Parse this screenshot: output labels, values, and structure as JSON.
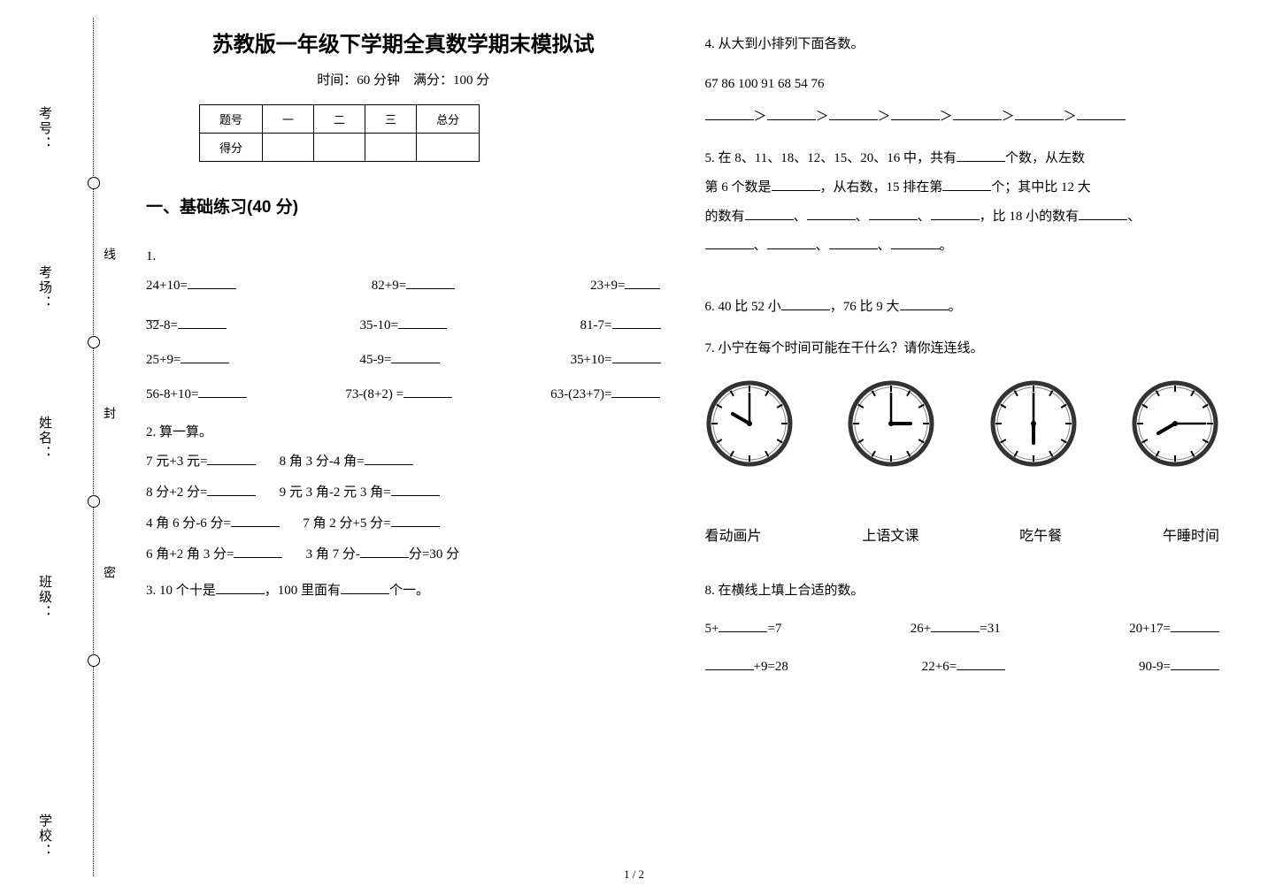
{
  "binding": {
    "labels": [
      "考号：",
      "考场：",
      "姓名：",
      "班级：",
      "学校："
    ],
    "seglabels": [
      "线",
      "封",
      "密"
    ]
  },
  "header": {
    "title": "苏教版一年级下学期全真数学期末模拟试",
    "subtitle": "时间：60 分钟　满分：100 分"
  },
  "score_table": {
    "row1": [
      "题号",
      "一",
      "二",
      "三",
      "总分"
    ],
    "row2_label": "得分"
  },
  "section1_title": "一、基础练习(40 分)",
  "q1": {
    "num": "1.",
    "a1": "24+10=",
    "a2": "82+9=",
    "a3": "23+9=",
    "b1": "32-8=",
    "b2": "35-10=",
    "b3": "81-7=",
    "c1": "25+9=",
    "c2": "45-9=",
    "c3": "35+10=",
    "d1": "56-8+10=",
    "d2": "73-(8+2) =",
    "d3": "63-(23+7)="
  },
  "q2": {
    "num": "2.  算一算。",
    "a1": "7 元+3 元=",
    "a2": "8 角 3 分-4 角=",
    "b1": "8 分+2 分=",
    "b2": "9 元 3 角-2 元 3 角=",
    "c1": "4 角 6 分-6 分=",
    "c2": "7 角 2 分+5 分=",
    "d1": "6 角+2 角 3 分=",
    "d2a": "3 角 7 分-",
    "d2b": "分=30 分"
  },
  "q3": {
    "a": "3.  10 个十是",
    "b": "，100 里面有",
    "c": "个一。"
  },
  "q4": {
    "title": "4.  从大到小排列下面各数。",
    "nums": "67  86  100  91  68  54  76",
    "gt": "＞"
  },
  "q5": {
    "a": "5.  在 8、11、18、12、15、20、16 中，共有",
    "b": "个数，从左数",
    "c": "第 6 个数是",
    "d": "，从右数，15 排在第",
    "e": "个；其中比 12 大",
    "f": "的数有",
    "g": "，比 18 小的数有",
    "sep": "、",
    "end": "。"
  },
  "q6": {
    "a": "6.  40 比 52 小",
    "b": "，76 比 9 大",
    "c": "。"
  },
  "q7": {
    "title": "7.  小宁在每个时间可能在干什么？请你连连线。",
    "activities": [
      "看动画片",
      "上语文课",
      "吃午餐",
      "午睡时间"
    ],
    "clocks": [
      {
        "hour_angle": -60,
        "minute_angle": 0
      },
      {
        "hour_angle": 90,
        "minute_angle": 0
      },
      {
        "hour_angle": 180,
        "minute_angle": 0
      },
      {
        "hour_angle": 240,
        "minute_angle": 90
      }
    ],
    "clock_style": {
      "rim_color": "#333333",
      "face_color": "#ffffff",
      "tick_color": "#000000",
      "hand_color": "#000000",
      "radius": 46,
      "hour_len": 22,
      "minute_len": 34
    }
  },
  "q8": {
    "title": "8.  在横线上填上合适的数。",
    "r1a_pre": "5+",
    "r1a_post": "=7",
    "r1b_pre": "26+",
    "r1b_post": "=31",
    "r1c": "20+17=",
    "r2a_post": "+9=28",
    "r2b": "22+6=",
    "r2c": "90-9="
  },
  "footer": "1 / 2"
}
